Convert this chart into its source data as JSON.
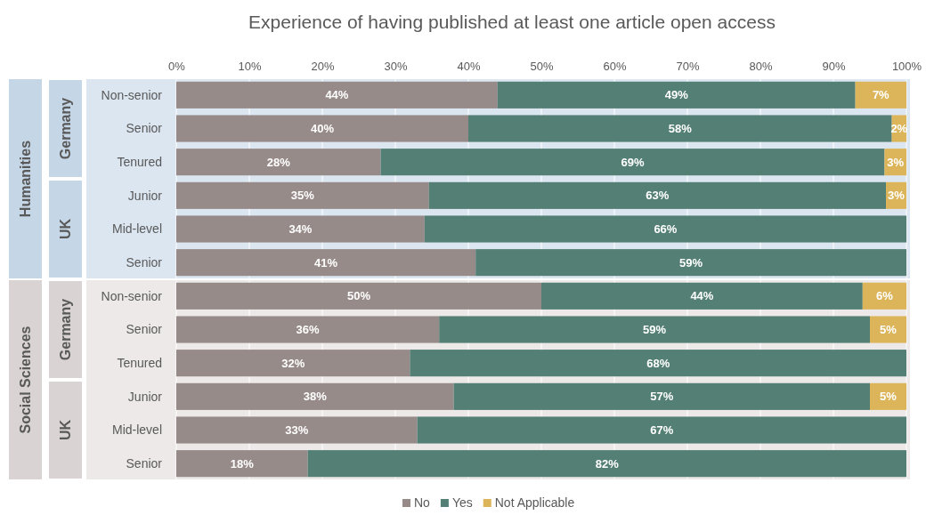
{
  "chart_data": {
    "type": "bar",
    "orientation": "horizontal",
    "stacked": true,
    "title": "Experience of having published at least one article open access",
    "categories": [
      "Non-senior",
      "Senior",
      "Tenured",
      "Junior",
      "Mid-level",
      "Senior",
      "Non-senior",
      "Senior",
      "Tenured",
      "Junior",
      "Mid-level",
      "Senior"
    ],
    "annotations": [
      "Humanities",
      "Germany",
      "UK",
      "Social Sciences",
      "Germany",
      "UK"
    ],
    "series": [
      {
        "name": "No",
        "color": "#978b89",
        "values": [
          44,
          40,
          28,
          34.6,
          34,
          41,
          50,
          36,
          32,
          38,
          33,
          18
        ],
        "value_labels": [
          "44%",
          "40%",
          "28%",
          "35%",
          "34%",
          "41%",
          "50%",
          "36%",
          "32%",
          "38%",
          "33%",
          "18%"
        ]
      },
      {
        "name": "Yes",
        "color": "#547f75",
        "values": [
          49,
          58,
          69,
          62.6,
          66,
          59,
          44,
          59,
          68,
          57,
          67,
          82
        ],
        "value_labels": [
          "49%",
          "58%",
          "69%",
          "63%",
          "66%",
          "59%",
          "44%",
          "59%",
          "68%",
          "57%",
          "67%",
          "82%"
        ]
      },
      {
        "name": "Not Applicable",
        "color": "#dcb55a",
        "values": [
          7,
          2,
          3,
          2.8,
          null,
          null,
          6,
          5,
          null,
          5,
          null,
          null
        ],
        "value_labels": [
          "7%",
          "2%",
          "3%",
          "3%",
          null,
          null,
          "6%",
          "5%",
          null,
          "5%",
          null,
          null
        ]
      }
    ],
    "xlim": [
      0,
      100
    ],
    "xticks": [
      {
        "value": 0,
        "label": "0%"
      },
      {
        "value": 10,
        "label": "10%"
      },
      {
        "value": 20,
        "label": "20%"
      },
      {
        "value": 30,
        "label": "30%"
      },
      {
        "value": 40,
        "label": "40%"
      },
      {
        "value": 50,
        "label": "50%"
      },
      {
        "value": 60,
        "label": "60%"
      },
      {
        "value": 70,
        "label": "70%"
      },
      {
        "value": 80,
        "label": "80%"
      },
      {
        "value": 90,
        "label": "90%"
      },
      {
        "value": 100,
        "label": "100%"
      }
    ],
    "grid": "x",
    "legend": "bottom"
  }
}
